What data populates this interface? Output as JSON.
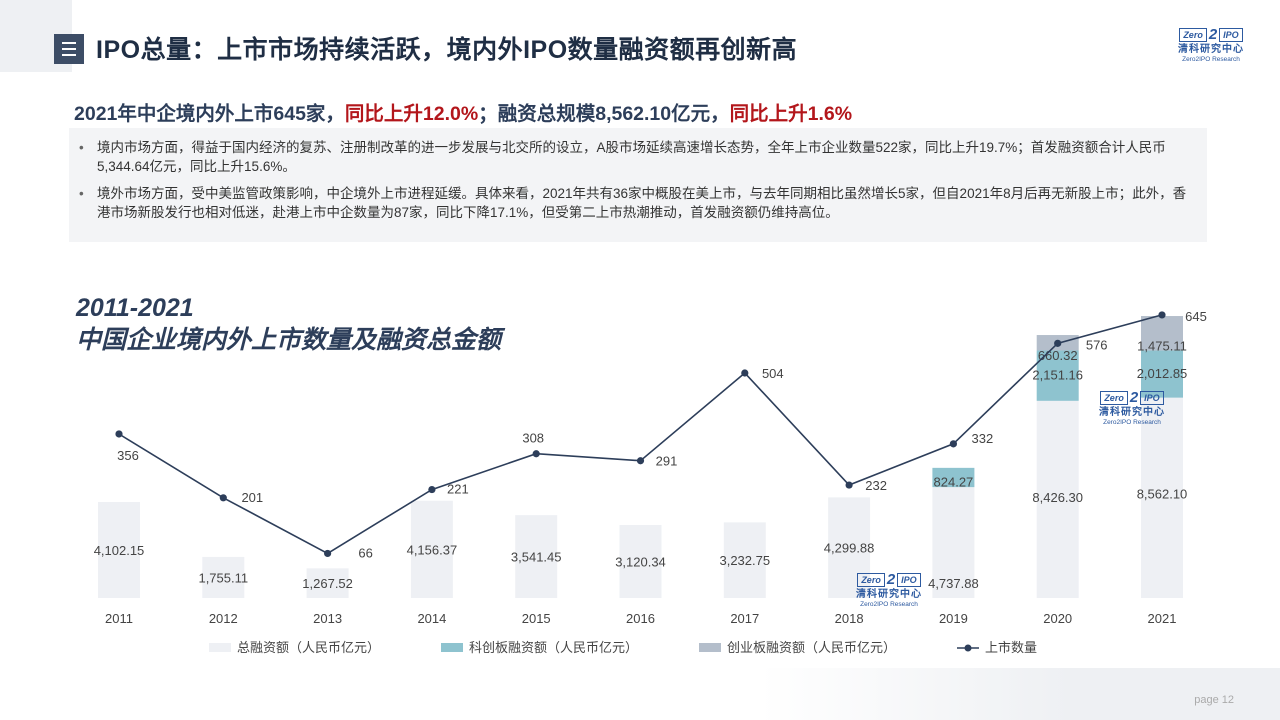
{
  "header": {
    "title": "IPO总量：上市市场持续活跃，境内外IPO数量融资额再创新高",
    "logo_box_left": "Zero",
    "logo_two": "2",
    "logo_box_right": "IPO",
    "logo_cn": "清科研究中心",
    "logo_en": "Zero2IPO Research"
  },
  "headline": {
    "part1": "2021年中企境内外上市645家，",
    "part2": "同比上升12.0%",
    "part3": "；融资总规模8,562.10亿元，",
    "part4": "同比上升1.6%"
  },
  "bullets": [
    "境内市场方面，得益于国内经济的复苏、注册制改革的进一步发展与北交所的设立，A股市场延续高速增长态势，全年上市企业数量522家，同比上升19.7%；首发融资额合计人民币5,344.64亿元，同比上升15.6%。",
    "境外市场方面，受中美监管政策影响，中企境外上市进程延缓。具体来看，2021年共有36家中概股在美上市，与去年同期相比虽然增长5家，但自2021年8月后再无新股上市；此外，香港市场新股发行也相对低迷，赴港上市中企数量为87家，同比下降17.1%，但受第二上市热潮推动，首发融资额仍维持高位。"
  ],
  "chart_title": {
    "line1": "2011-2021",
    "line2": "中国企业境内外上市数量及融资总金额"
  },
  "chart_data": {
    "type": "bar",
    "categories": [
      "2011",
      "2012",
      "2013",
      "2014",
      "2015",
      "2016",
      "2017",
      "2018",
      "2019",
      "2020",
      "2021"
    ],
    "series": [
      {
        "name": "总融资额（人民币亿元）",
        "type": "bar",
        "color": "#eef0f4",
        "values": [
          4102.15,
          1755.11,
          1267.52,
          4156.37,
          3541.45,
          3120.34,
          3232.75,
          4299.88,
          4737.88,
          8426.3,
          8562.1
        ],
        "labels": [
          "4,102.15",
          "1,755.11",
          "1,267.52",
          "4,156.37",
          "3,541.45",
          "3,120.34",
          "3,232.75",
          "4,299.88",
          "4,737.88",
          "8,426.30",
          "8,562.10"
        ]
      },
      {
        "name": "科创板融资额（人民币亿元）",
        "type": "bar",
        "color": "#8ec3cf",
        "values": [
          null,
          null,
          null,
          null,
          null,
          null,
          null,
          null,
          824.27,
          2151.16,
          2012.85
        ],
        "labels": [
          "",
          "",
          "",
          "",
          "",
          "",
          "",
          "",
          "824.27",
          "2,151.16",
          "2,012.85"
        ]
      },
      {
        "name": "创业板融资额（人民币亿元）",
        "type": "bar",
        "color": "#b4becb",
        "values": [
          null,
          null,
          null,
          null,
          null,
          null,
          null,
          null,
          null,
          660.32,
          1475.11
        ],
        "labels": [
          "",
          "",
          "",
          "",
          "",
          "",
          "",
          "",
          "",
          "660.32",
          "1,475.11"
        ]
      },
      {
        "name": "上市数量",
        "type": "line",
        "color": "#2d3e5a",
        "values": [
          356,
          201,
          66,
          221,
          308,
          291,
          504,
          232,
          332,
          576,
          645
        ],
        "labels": [
          "356",
          "201",
          "66",
          "221",
          "308",
          "291",
          "504",
          "232",
          "332",
          "576",
          "645"
        ]
      }
    ],
    "legend_position": "bottom",
    "grid": false
  },
  "footer": {
    "page_label": "page 12"
  }
}
